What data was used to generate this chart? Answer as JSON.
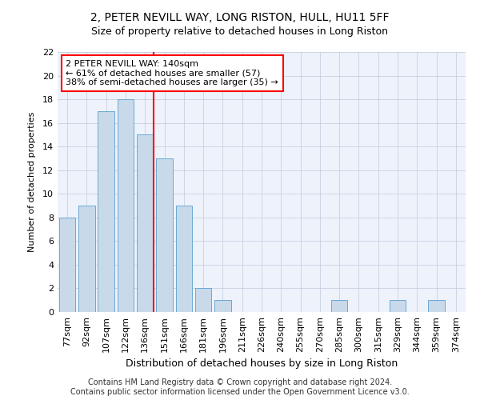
{
  "title": "2, PETER NEVILL WAY, LONG RISTON, HULL, HU11 5FF",
  "subtitle": "Size of property relative to detached houses in Long Riston",
  "xlabel": "Distribution of detached houses by size in Long Riston",
  "ylabel": "Number of detached properties",
  "categories": [
    "77sqm",
    "92sqm",
    "107sqm",
    "122sqm",
    "136sqm",
    "151sqm",
    "166sqm",
    "181sqm",
    "196sqm",
    "211sqm",
    "226sqm",
    "240sqm",
    "255sqm",
    "270sqm",
    "285sqm",
    "300sqm",
    "315sqm",
    "329sqm",
    "344sqm",
    "359sqm",
    "374sqm"
  ],
  "values": [
    8,
    9,
    17,
    18,
    15,
    13,
    9,
    2,
    1,
    0,
    0,
    0,
    0,
    0,
    1,
    0,
    0,
    1,
    0,
    1,
    0
  ],
  "bar_color": "#c8d9ea",
  "bar_edge_color": "#6aaad4",
  "marker_after_index": 4,
  "marker_label": "2 PETER NEVILL WAY: 140sqm",
  "marker_line1": "← 61% of detached houses are smaller (57)",
  "marker_line2": "38% of semi-detached houses are larger (35) →",
  "marker_color": "red",
  "ylim": [
    0,
    22
  ],
  "yticks": [
    0,
    2,
    4,
    6,
    8,
    10,
    12,
    14,
    16,
    18,
    20,
    22
  ],
  "footnote1": "Contains HM Land Registry data © Crown copyright and database right 2024.",
  "footnote2": "Contains public sector information licensed under the Open Government Licence v3.0.",
  "bg_color": "#eef2fb",
  "grid_color": "#c8d0e0",
  "title_fontsize": 10,
  "subtitle_fontsize": 9,
  "xlabel_fontsize": 9,
  "ylabel_fontsize": 8,
  "tick_fontsize": 8,
  "annot_fontsize": 8,
  "footnote_fontsize": 7
}
